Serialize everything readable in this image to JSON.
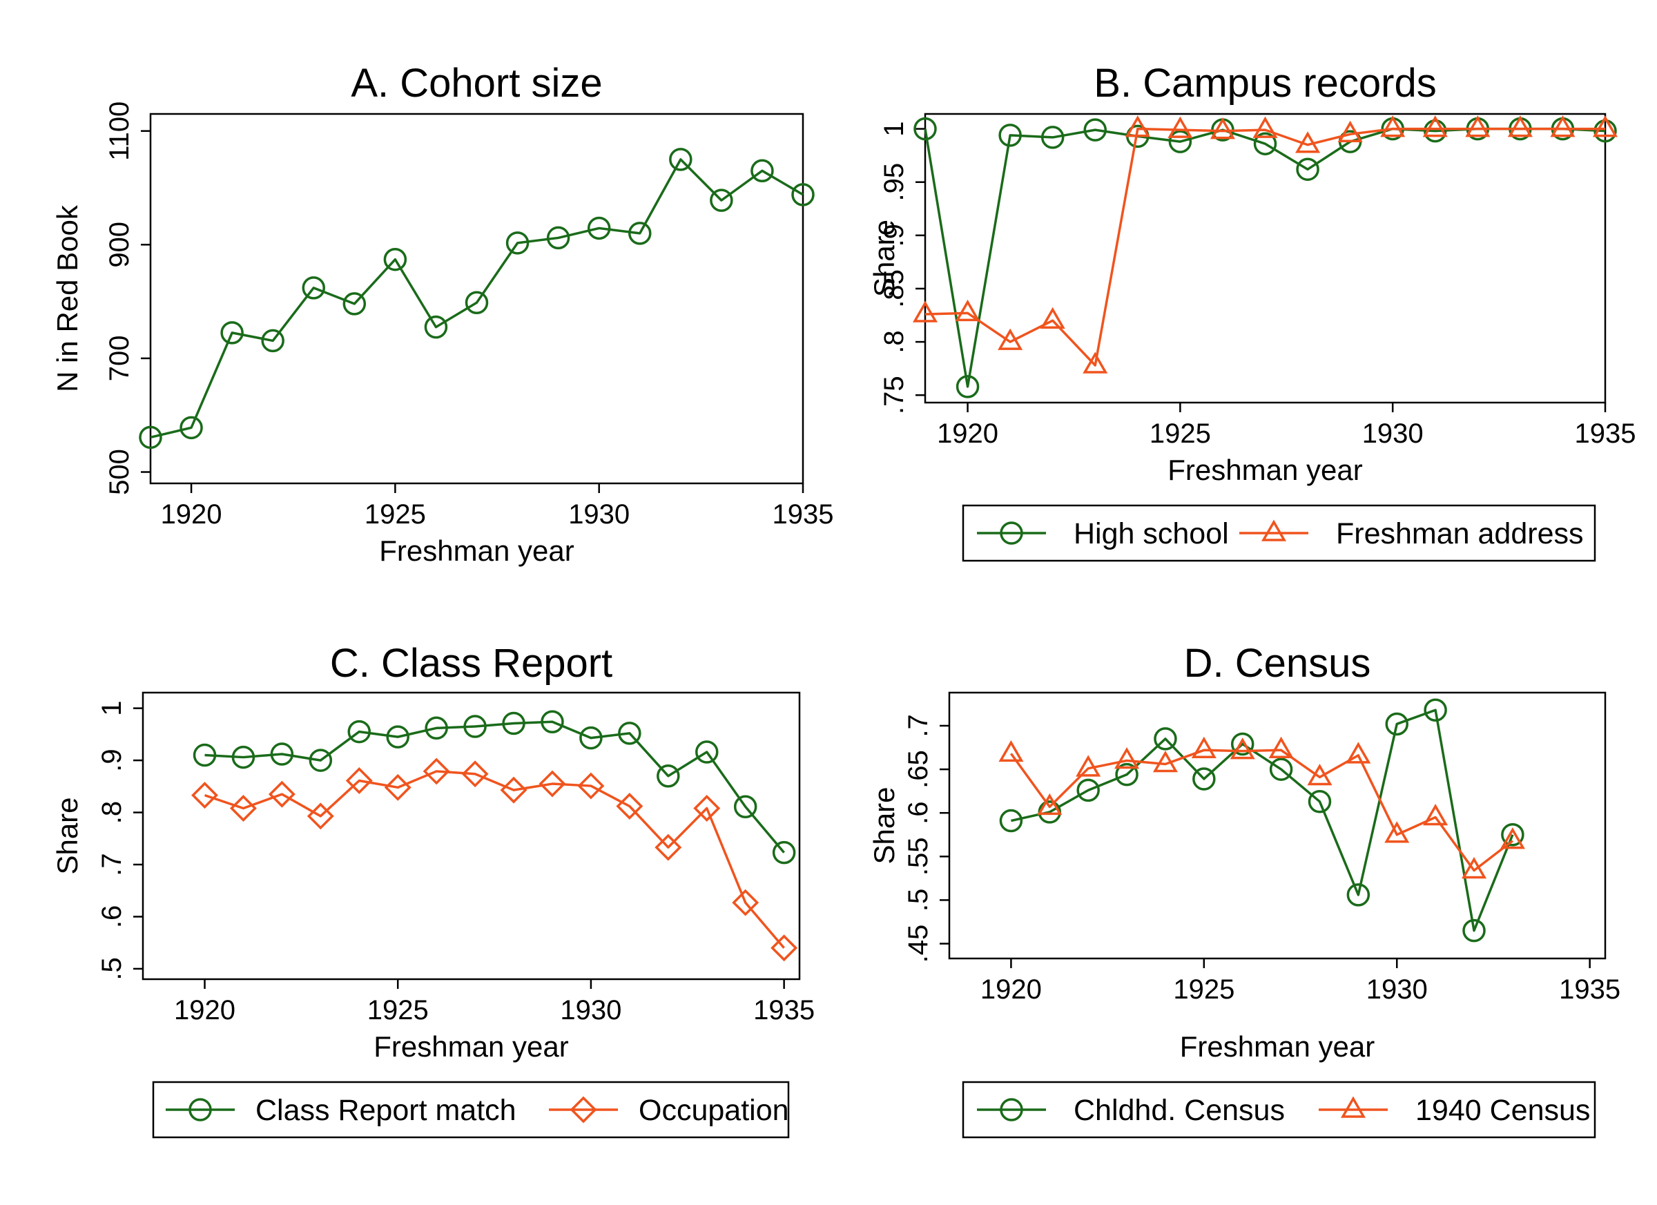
{
  "colors": {
    "green": "#1a6b1a",
    "orange": "#f0541e",
    "axis": "#000000"
  },
  "chart_data": [
    {
      "type": "line",
      "title": "A. Cohort size",
      "xlabel": "Freshman year",
      "ylabel": "N in Red Book",
      "xlim": [
        1919,
        1935
      ],
      "ylim": [
        480,
        1130
      ],
      "xticks": [
        1920,
        1925,
        1930,
        1935
      ],
      "xtick_labels": [
        "1920",
        "1925",
        "1930",
        "1935"
      ],
      "yticks": [
        500,
        700,
        900,
        1100
      ],
      "ytick_labels": [
        "500",
        "700",
        "900",
        "1100"
      ],
      "legend": [],
      "series": [
        {
          "color": "#1a6b1a",
          "marker": "circle",
          "x": [
            1919,
            1920,
            1921,
            1922,
            1923,
            1924,
            1925,
            1926,
            1927,
            1928,
            1929,
            1930,
            1931,
            1932,
            1933,
            1934,
            1935
          ],
          "y": [
            561,
            578,
            745,
            731,
            824,
            796,
            874,
            755,
            798,
            903,
            912,
            929,
            920,
            1050,
            978,
            1030,
            988
          ]
        }
      ]
    },
    {
      "type": "line",
      "title": "B. Campus records",
      "xlabel": "Freshman year",
      "ylabel": "Share",
      "xlim": [
        1919,
        1935
      ],
      "ylim": [
        0.743,
        1.014
      ],
      "xticks": [
        1920,
        1925,
        1930,
        1935
      ],
      "xtick_labels": [
        "1920",
        "1925",
        "1930",
        "1935"
      ],
      "yticks": [
        0.75,
        0.8,
        0.85,
        0.9,
        0.95,
        1
      ],
      "ytick_labels": [
        ".75",
        ".8",
        ".85",
        ".9",
        ".95",
        "1"
      ],
      "legend_position": "bottom",
      "legend": [
        {
          "label": "High school",
          "color": "#1a6b1a",
          "marker": "circle"
        },
        {
          "label": "Freshman address",
          "color": "#f0541e",
          "marker": "triangle"
        }
      ],
      "series": [
        {
          "name": "High school",
          "color": "#1a6b1a",
          "marker": "circle",
          "x": [
            1919,
            1920,
            1921,
            1922,
            1923,
            1924,
            1925,
            1926,
            1927,
            1928,
            1929,
            1930,
            1931,
            1932,
            1933,
            1934,
            1935
          ],
          "y": [
            1.0,
            0.758,
            0.994,
            0.992,
            0.999,
            0.993,
            0.988,
            0.999,
            0.986,
            0.962,
            0.988,
            1.0,
            0.998,
            1.0,
            1.0,
            1.0,
            0.998
          ]
        },
        {
          "name": "Freshman address",
          "color": "#f0541e",
          "marker": "triangle",
          "x": [
            1919,
            1920,
            1921,
            1922,
            1923,
            1924,
            1925,
            1926,
            1927,
            1928,
            1929,
            1930,
            1931,
            1932,
            1933,
            1934,
            1935
          ],
          "y": [
            0.826,
            0.827,
            0.8,
            0.82,
            0.778,
            1.0,
            0.999,
            0.998,
            0.999,
            0.985,
            0.995,
            1.0,
            1.0,
            1.0,
            1.0,
            1.0,
            1.0
          ]
        }
      ]
    },
    {
      "type": "line",
      "title": "C. Class Report",
      "xlabel": "Freshman year",
      "ylabel": "Share",
      "xlim": [
        1918.4,
        1935.4
      ],
      "ylim": [
        0.48,
        1.03
      ],
      "xticks": [
        1920,
        1925,
        1930,
        1935
      ],
      "xtick_labels": [
        "1920",
        "1925",
        "1930",
        "1935"
      ],
      "yticks": [
        0.5,
        0.6,
        0.7,
        0.8,
        0.9,
        1
      ],
      "ytick_labels": [
        ".5",
        ".6",
        ".7",
        ".8",
        ".9",
        "1"
      ],
      "legend_position": "bottom",
      "legend": [
        {
          "label": "Class Report match",
          "color": "#1a6b1a",
          "marker": "circle"
        },
        {
          "label": "Occupation",
          "color": "#f0541e",
          "marker": "diamond"
        }
      ],
      "series": [
        {
          "name": "Class Report match",
          "color": "#1a6b1a",
          "marker": "circle",
          "x": [
            1920,
            1921,
            1922,
            1923,
            1924,
            1925,
            1926,
            1927,
            1928,
            1929,
            1930,
            1931,
            1932,
            1933,
            1934,
            1935
          ],
          "y": [
            0.91,
            0.906,
            0.912,
            0.9,
            0.955,
            0.945,
            0.962,
            0.965,
            0.971,
            0.974,
            0.943,
            0.952,
            0.87,
            0.916,
            0.811,
            0.723
          ]
        },
        {
          "name": "Occupation",
          "color": "#f0541e",
          "marker": "diamond",
          "x": [
            1920,
            1921,
            1922,
            1923,
            1924,
            1925,
            1926,
            1927,
            1928,
            1929,
            1930,
            1931,
            1932,
            1933,
            1934,
            1935
          ],
          "y": [
            0.833,
            0.808,
            0.835,
            0.793,
            0.861,
            0.848,
            0.879,
            0.874,
            0.843,
            0.855,
            0.851,
            0.812,
            0.733,
            0.808,
            0.627,
            0.54
          ]
        }
      ]
    },
    {
      "type": "line",
      "title": "D. Census",
      "xlabel": "Freshman year",
      "ylabel": "Share",
      "xlim": [
        1918.4,
        1935.4
      ],
      "ylim": [
        0.433,
        0.738
      ],
      "xticks": [
        1920,
        1925,
        1930,
        1935
      ],
      "xtick_labels": [
        "1920",
        "1925",
        "1930",
        "1935"
      ],
      "yticks": [
        0.45,
        0.5,
        0.55,
        0.6,
        0.65,
        0.7
      ],
      "ytick_labels": [
        ".45",
        ".5",
        ".55",
        ".6",
        ".65",
        ".7"
      ],
      "legend_position": "bottom",
      "legend": [
        {
          "label": "Chldhd. Census",
          "color": "#1a6b1a",
          "marker": "circle"
        },
        {
          "label": "1940 Census",
          "color": "#f0541e",
          "marker": "triangle"
        }
      ],
      "series": [
        {
          "name": "Chldhd. Census",
          "color": "#1a6b1a",
          "marker": "circle",
          "x": [
            1920,
            1921,
            1922,
            1923,
            1924,
            1925,
            1926,
            1927,
            1928,
            1929,
            1930,
            1931,
            1932,
            1933
          ],
          "y": [
            0.591,
            0.601,
            0.626,
            0.644,
            0.685,
            0.639,
            0.679,
            0.65,
            0.613,
            0.506,
            0.702,
            0.718,
            0.465,
            0.575
          ]
        },
        {
          "name": "1940 Census",
          "color": "#f0541e",
          "marker": "triangle",
          "x": [
            1920,
            1921,
            1922,
            1923,
            1924,
            1925,
            1926,
            1927,
            1928,
            1929,
            1930,
            1931,
            1932,
            1933
          ],
          "y": [
            0.668,
            0.607,
            0.651,
            0.66,
            0.656,
            0.672,
            0.671,
            0.672,
            0.641,
            0.666,
            0.575,
            0.595,
            0.534,
            0.568
          ]
        }
      ]
    }
  ]
}
